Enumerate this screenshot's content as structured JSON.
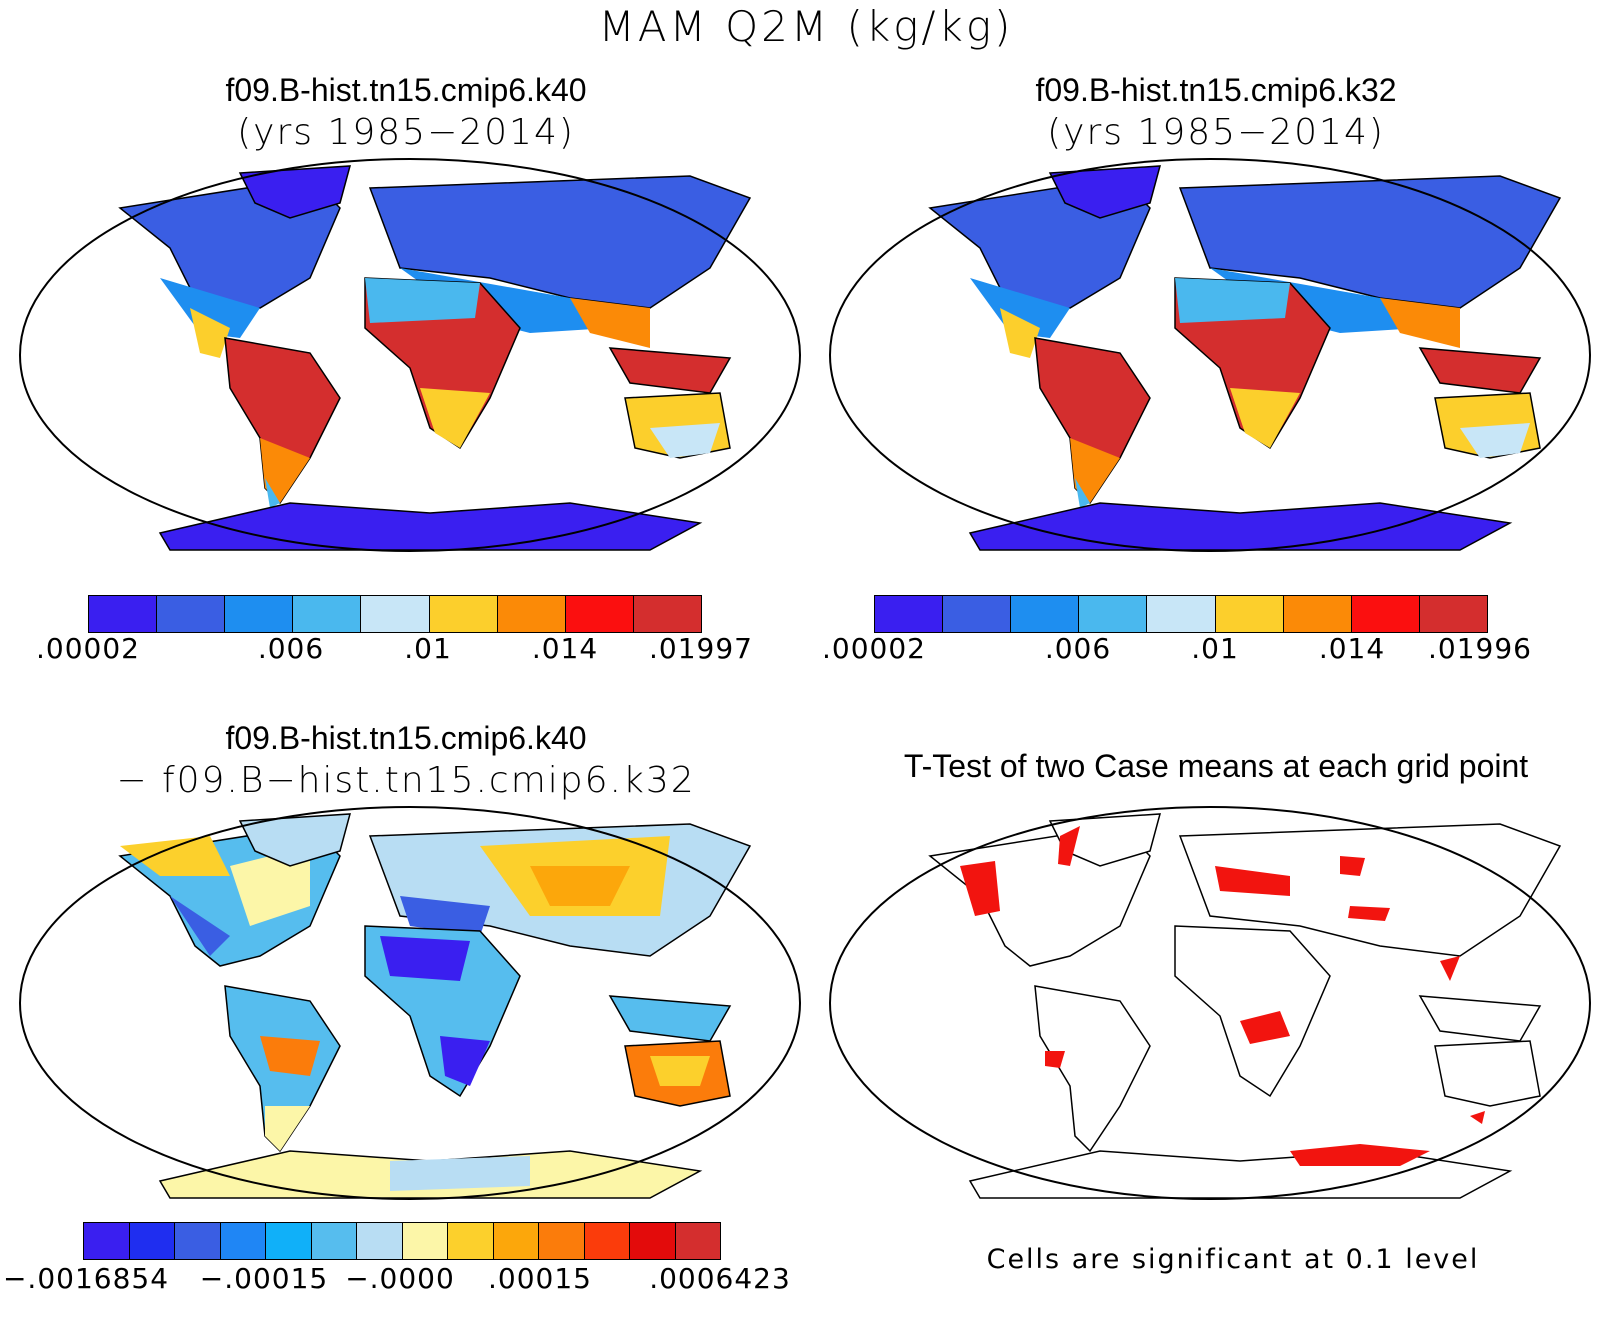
{
  "figure_title": "MAM Q2M (kg/kg)",
  "panels": {
    "top_left": {
      "title": "f09.B-hist.tn15.cmip6.k40",
      "subtitle": "(yrs 1985−2014)"
    },
    "top_right": {
      "title": "f09.B-hist.tn15.cmip6.k32",
      "subtitle": "(yrs 1985−2014)"
    },
    "bottom_left": {
      "title": "f09.B-hist.tn15.cmip6.k40",
      "subtitle": "− f09.B−hist.tn15.cmip6.k32"
    },
    "bottom_right": {
      "title": "T-Test of two Case means at each grid point",
      "note": "Cells are significant at 0.1 level"
    }
  },
  "colorbars": {
    "top_left": {
      "colors": [
        "#3a1ff0",
        "#3a5ee3",
        "#1e8ef0",
        "#4ab8ee",
        "#c8e6f7",
        "#fccf2c",
        "#fb8a07",
        "#fb0f0f",
        "#d42e2e"
      ],
      "labels": [
        ".00002",
        ".006",
        ".01",
        ".014",
        ".01997"
      ]
    },
    "top_right": {
      "colors": [
        "#3a1ff0",
        "#3a5ee3",
        "#1e8ef0",
        "#4ab8ee",
        "#c8e6f7",
        "#fccf2c",
        "#fb8a07",
        "#fb0f0f",
        "#d42e2e"
      ],
      "labels": [
        ".00002",
        ".006",
        ".01",
        ".014",
        ".01996"
      ]
    },
    "bottom_left": {
      "colors": [
        "#3a1ff0",
        "#1f2ef0",
        "#3a5ee3",
        "#1f86f5",
        "#10b0f9",
        "#56bdee",
        "#b8ddf3",
        "#fcf6a8",
        "#fcd02c",
        "#fca70b",
        "#fb7c0b",
        "#fb3c0b",
        "#e30b0b",
        "#d42e2e"
      ],
      "labels": [
        "−.0016854",
        "−.00015",
        "−.0000",
        ".00015",
        ".0006423"
      ]
    }
  },
  "map_colors": {
    "ocean": "#ffffff",
    "outline": "#000000",
    "significant": "#f2140f"
  }
}
